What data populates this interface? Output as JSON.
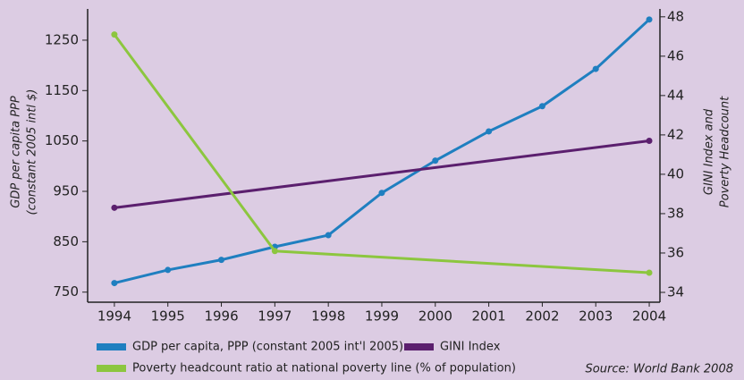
{
  "chart_data": {
    "type": "line",
    "y_label": [
      "GDP per capita PPP",
      "(constant 2005 intl $)"
    ],
    "y2_label": [
      "GINI Index and",
      "Poverty Headcount"
    ],
    "source": "Source: World Bank 2008",
    "xlim": [
      1993.5,
      2004.2
    ],
    "xticks": [
      1994,
      1995,
      1996,
      1997,
      1998,
      1999,
      2000,
      2001,
      2002,
      2003,
      2004
    ],
    "ylim": [
      730,
      1312
    ],
    "yticks": [
      750,
      850,
      950,
      1050,
      1150,
      1250
    ],
    "y2lim": [
      33.5,
      48.4
    ],
    "y2ticks": [
      34,
      36,
      38,
      40,
      42,
      44,
      46,
      48
    ],
    "series": [
      {
        "name": "GDP per capita, PPP (constant 2005 int'l 2005)",
        "color": "#1f7fc0",
        "x": [
          1994,
          1995,
          1996,
          1997,
          1998,
          1999,
          2000,
          2001,
          2002,
          2003,
          2004
        ],
        "values": [
          768,
          794,
          814,
          840,
          863,
          947,
          1011,
          1069,
          1119,
          1193,
          1291
        ]
      },
      {
        "name": "GINI Index",
        "color": "#5b1f6e",
        "axis": "y2",
        "x": [
          1994,
          2004
        ],
        "values": [
          38.3,
          41.7
        ]
      },
      {
        "name": "Poverty headcount ratio at national poverty line (% of population)",
        "color": "#8cc63f",
        "axis": "y2",
        "x": [
          1994,
          1997,
          2004
        ],
        "values": [
          47.1,
          36.1,
          35.0
        ]
      }
    ]
  }
}
